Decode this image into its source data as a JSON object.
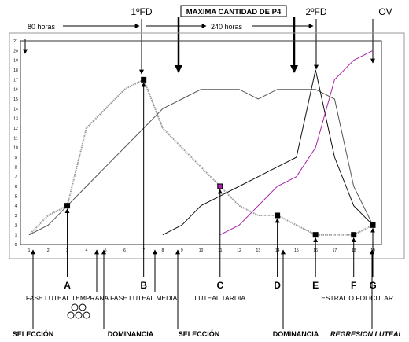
{
  "header": {
    "fd1": "1ºFD",
    "title": "MAXIMA CANTIDAD DE P4",
    "fd2": "2ºFD",
    "ov": "OV",
    "interval_80": "80 horas",
    "interval_240": "240 horas"
  },
  "chart_data": {
    "type": "line",
    "x": {
      "min": 1,
      "max": 19,
      "ticks": [
        1,
        2,
        3,
        4,
        5,
        6,
        7,
        8,
        9,
        10,
        11,
        12,
        13,
        14,
        15,
        16,
        17,
        18,
        19
      ]
    },
    "y": {
      "min": 0,
      "max": 21,
      "ticks": [
        0,
        1,
        2,
        3,
        4,
        5,
        6,
        7,
        8,
        9,
        10,
        11,
        12,
        13,
        14,
        15,
        16,
        17,
        18,
        19,
        20,
        21
      ]
    },
    "grid": false,
    "series": [
      {
        "color": "#9a9a9a",
        "style": "dotted",
        "points": [
          [
            1,
            1
          ],
          [
            2,
            3
          ],
          [
            3,
            4
          ],
          [
            4,
            12
          ],
          [
            5,
            14
          ],
          [
            6,
            16
          ],
          [
            7,
            17
          ],
          [
            8,
            12
          ],
          [
            9,
            10
          ],
          [
            10,
            8
          ],
          [
            11,
            6
          ],
          [
            12,
            4
          ],
          [
            13,
            3
          ],
          [
            14,
            3
          ],
          [
            15,
            2
          ],
          [
            16,
            1
          ],
          [
            17,
            1
          ],
          [
            18,
            1
          ],
          [
            19,
            2
          ]
        ]
      },
      {
        "color": "#555555",
        "style": "solid",
        "points": [
          [
            1,
            1
          ],
          [
            2,
            2
          ],
          [
            3,
            4
          ],
          [
            5,
            8
          ],
          [
            7,
            12
          ],
          [
            8,
            14
          ],
          [
            9,
            15
          ],
          [
            10,
            16
          ],
          [
            11,
            16
          ],
          [
            12,
            16
          ],
          [
            13,
            15
          ],
          [
            14,
            16
          ],
          [
            15,
            16
          ],
          [
            16,
            16
          ],
          [
            17,
            15
          ],
          [
            18,
            6
          ],
          [
            19,
            2
          ]
        ]
      },
      {
        "color": "#111111",
        "style": "solid",
        "points": [
          [
            8,
            1
          ],
          [
            9,
            2
          ],
          [
            10,
            4
          ],
          [
            11,
            5
          ],
          [
            12,
            6
          ],
          [
            13,
            7
          ],
          [
            14,
            8
          ],
          [
            15,
            9
          ],
          [
            16,
            18
          ],
          [
            17,
            9
          ],
          [
            18,
            4
          ],
          [
            19,
            2
          ]
        ]
      },
      {
        "color": "#aa22aa",
        "style": "solid",
        "points": [
          [
            11,
            1
          ],
          [
            12,
            2
          ],
          [
            13,
            4
          ],
          [
            14,
            6
          ],
          [
            15,
            7
          ],
          [
            16,
            10
          ],
          [
            17,
            17
          ],
          [
            18,
            19
          ],
          [
            19,
            20
          ]
        ]
      }
    ],
    "markers": [
      [
        3,
        4
      ],
      [
        7,
        17
      ],
      [
        11,
        6
      ],
      [
        14,
        3
      ],
      [
        16,
        1
      ],
      [
        18,
        1
      ],
      [
        19,
        2
      ]
    ],
    "marker_colors": {
      "default": "#000000",
      "highlight": "#aa22aa"
    }
  },
  "events": [
    {
      "letter": "A",
      "label": "FASE LUTEAL TEMPRANA",
      "x": 3
    },
    {
      "letter": "B",
      "label": "FASE LUTEAL MEDIA",
      "x": 7
    },
    {
      "letter": "C",
      "label": "LUTEAL TARDIA",
      "x": 11
    },
    {
      "letter": "D",
      "label": "",
      "x": 14
    },
    {
      "letter": "E",
      "label": "",
      "x": 16
    },
    {
      "letter": "F",
      "label": "ESTRAL O FOLICULAR",
      "x": 18
    },
    {
      "letter": "G",
      "label": "",
      "x": 19
    }
  ],
  "phases": {
    "seleccion1": "SELECCIÓN",
    "dominancia1": "DOMINANCIA",
    "seleccion2": "SELECCIÓN",
    "dominancia2": "DOMINANCIA",
    "regresion": "REGRESION LUTEAL"
  }
}
